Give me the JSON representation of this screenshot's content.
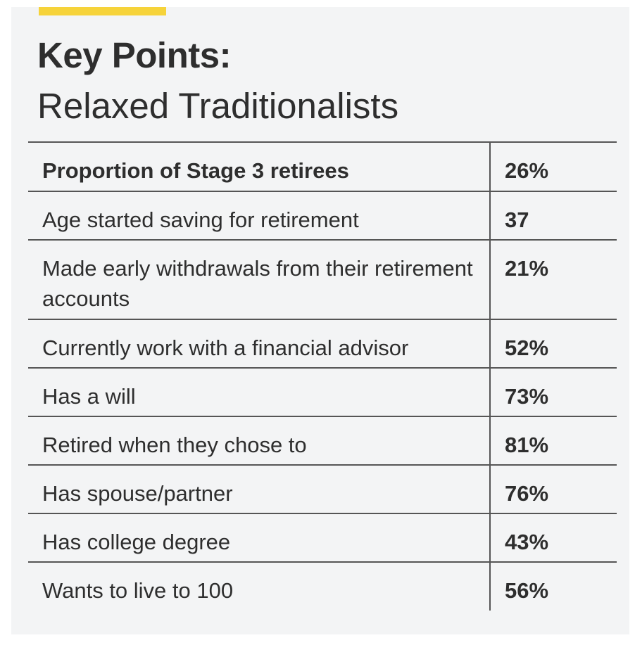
{
  "heading": {
    "title": "Key Points:",
    "subtitle": "Relaxed Traditionalists"
  },
  "colors": {
    "accent": "#f6d33a",
    "panel_background": "#f3f4f5",
    "text": "#2e2e2e",
    "rule": "#555555"
  },
  "table": {
    "rows": [
      {
        "label": "Proportion of Stage 3 retirees",
        "value": "26%"
      },
      {
        "label": "Age started saving for retirement",
        "value": "37"
      },
      {
        "label": "Made early withdrawals from their retirement accounts",
        "value": "21%"
      },
      {
        "label": "Currently work with a financial advisor",
        "value": "52%"
      },
      {
        "label": "Has a will",
        "value": "73%"
      },
      {
        "label": "Retired when they chose to",
        "value": "81%"
      },
      {
        "label": "Has spouse/partner",
        "value": "76%"
      },
      {
        "label": "Has college degree",
        "value": "43%"
      },
      {
        "label": "Wants to live to 100",
        "value": "56%"
      }
    ]
  }
}
